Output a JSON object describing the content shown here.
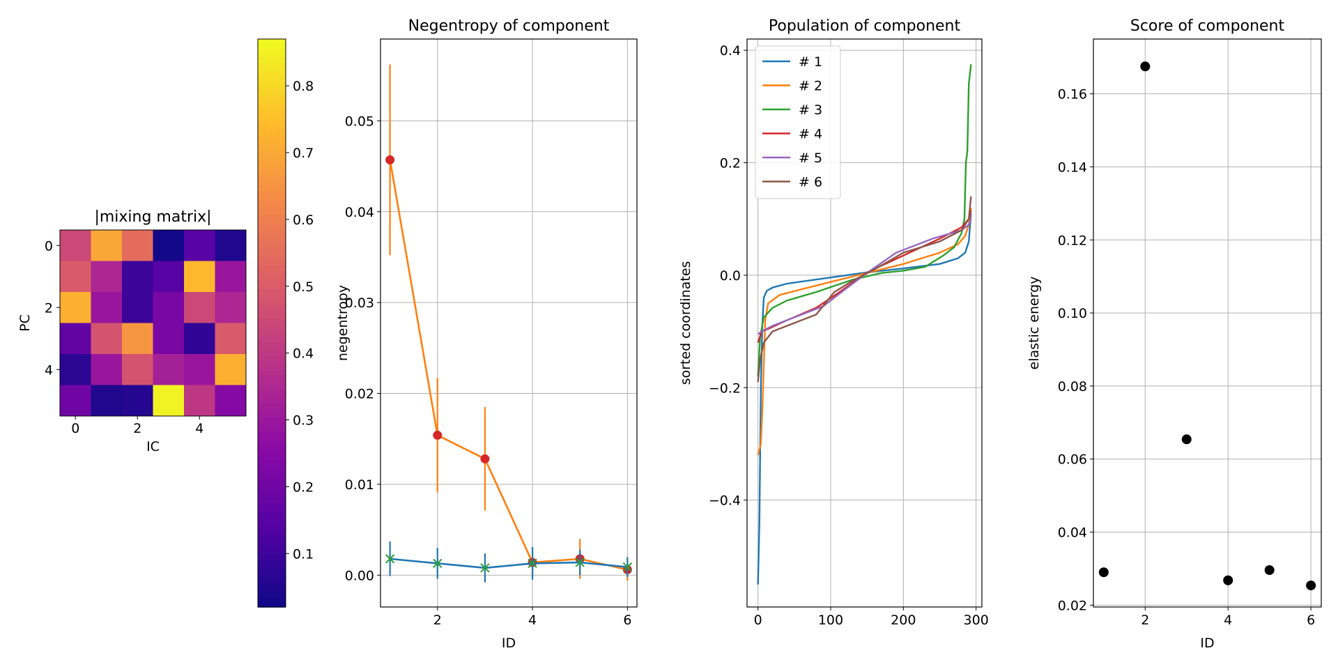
{
  "chart_data": [
    {
      "type": "heatmap",
      "title": "|mixing matrix|",
      "xlabel": "IC",
      "ylabel": "PC",
      "xticks": [
        "0",
        "2",
        "4"
      ],
      "yticks": [
        "0",
        "2",
        "4"
      ],
      "colormap": "plasma",
      "values": [
        [
          0.45,
          0.7,
          0.55,
          0.03,
          0.15,
          0.05
        ],
        [
          0.5,
          0.35,
          0.1,
          0.15,
          0.74,
          0.3
        ],
        [
          0.72,
          0.3,
          0.1,
          0.22,
          0.45,
          0.35
        ],
        [
          0.17,
          0.48,
          0.66,
          0.22,
          0.08,
          0.5
        ],
        [
          0.07,
          0.3,
          0.48,
          0.33,
          0.3,
          0.72
        ],
        [
          0.2,
          0.05,
          0.06,
          0.86,
          0.4,
          0.25
        ]
      ],
      "colorbar": {
        "vmin": 0.02,
        "vmax": 0.87,
        "ticks": [
          "0.1",
          "0.2",
          "0.3",
          "0.4",
          "0.5",
          "0.6",
          "0.7",
          "0.8"
        ]
      }
    },
    {
      "type": "line",
      "title": "Negentropy of component",
      "xlabel": "ID",
      "ylabel": "negentropy",
      "xlim": [
        0.8,
        6.2
      ],
      "ylim": [
        -0.0035,
        0.059
      ],
      "xticks": [
        "2",
        "4",
        "6"
      ],
      "yticks": [
        "0.00",
        "0.01",
        "0.02",
        "0.03",
        "0.04",
        "0.05"
      ],
      "grid": true,
      "x": [
        1,
        2,
        3,
        4,
        5,
        6
      ],
      "series": [
        {
          "values": [
            0.0457,
            0.0154,
            0.0128,
            0.0014,
            0.0018,
            0.0006
          ],
          "err": [
            0.0105,
            0.0063,
            0.0057,
            0.0015,
            0.0022,
            0.0012
          ],
          "color": "#ff7f0e",
          "marker_color": "#d62728",
          "marker": "circle"
        },
        {
          "values": [
            0.0018,
            0.0013,
            0.0008,
            0.0013,
            0.0014,
            0.0009
          ],
          "err": [
            0.0019,
            0.0017,
            0.0016,
            0.0018,
            0.0014,
            0.0011
          ],
          "color": "#1f77b4",
          "marker_color": "#2ca02c",
          "marker": "x"
        }
      ]
    },
    {
      "type": "line",
      "title": "Population of component",
      "xlabel": "",
      "ylabel": "sorted coordinates",
      "xlim": [
        -15,
        308
      ],
      "ylim": [
        -0.59,
        0.42
      ],
      "xticks": [
        "0",
        "100",
        "200",
        "300"
      ],
      "yticks": [
        "−0.4",
        "−0.2",
        "0.0",
        "0.2",
        "0.4"
      ],
      "grid": true,
      "legend": "top-left",
      "series": [
        {
          "name": "# 1",
          "color": "#1f77b4",
          "points": [
            [
              0,
              -0.55
            ],
            [
              2,
              -0.44
            ],
            [
              4,
              -0.2
            ],
            [
              6,
              -0.09
            ],
            [
              8,
              -0.04
            ],
            [
              12,
              -0.028
            ],
            [
              20,
              -0.022
            ],
            [
              40,
              -0.015
            ],
            [
              100,
              -0.004
            ],
            [
              150,
              0.005
            ],
            [
              200,
              0.012
            ],
            [
              250,
              0.02
            ],
            [
              275,
              0.03
            ],
            [
              285,
              0.04
            ],
            [
              290,
              0.06
            ],
            [
              293,
              0.11
            ]
          ]
        },
        {
          "name": "# 2",
          "color": "#ff7f0e",
          "points": [
            [
              0,
              -0.32
            ],
            [
              4,
              -0.3
            ],
            [
              6,
              -0.24
            ],
            [
              8,
              -0.16
            ],
            [
              10,
              -0.08
            ],
            [
              14,
              -0.05
            ],
            [
              30,
              -0.035
            ],
            [
              60,
              -0.025
            ],
            [
              100,
              -0.012
            ],
            [
              150,
              0.004
            ],
            [
              200,
              0.02
            ],
            [
              250,
              0.04
            ],
            [
              275,
              0.055
            ],
            [
              285,
              0.07
            ],
            [
              290,
              0.09
            ],
            [
              293,
              0.12
            ]
          ]
        },
        {
          "name": "# 3",
          "color": "#2ca02c",
          "points": [
            [
              0,
              -0.18
            ],
            [
              3,
              -0.11
            ],
            [
              8,
              -0.075
            ],
            [
              20,
              -0.058
            ],
            [
              40,
              -0.045
            ],
            [
              80,
              -0.03
            ],
            [
              130,
              -0.008
            ],
            [
              170,
              0.004
            ],
            [
              200,
              0.008
            ],
            [
              230,
              0.015
            ],
            [
              255,
              0.035
            ],
            [
              270,
              0.05
            ],
            [
              280,
              0.075
            ],
            [
              284,
              0.1
            ],
            [
              286,
              0.2
            ],
            [
              288,
              0.22
            ],
            [
              290,
              0.34
            ],
            [
              293,
              0.375
            ]
          ]
        },
        {
          "name": "# 4",
          "color": "#d62728",
          "points": [
            [
              0,
              -0.12
            ],
            [
              5,
              -0.1
            ],
            [
              15,
              -0.095
            ],
            [
              40,
              -0.08
            ],
            [
              80,
              -0.058
            ],
            [
              110,
              -0.032
            ],
            [
              150,
              0.005
            ],
            [
              200,
              0.035
            ],
            [
              250,
              0.065
            ],
            [
              280,
              0.085
            ],
            [
              290,
              0.1
            ],
            [
              293,
              0.115
            ]
          ]
        },
        {
          "name": "# 5",
          "color": "#9467bd",
          "points": [
            [
              0,
              -0.105
            ],
            [
              5,
              -0.1
            ],
            [
              20,
              -0.09
            ],
            [
              50,
              -0.075
            ],
            [
              90,
              -0.055
            ],
            [
              120,
              -0.025
            ],
            [
              150,
              0.004
            ],
            [
              190,
              0.04
            ],
            [
              240,
              0.065
            ],
            [
              280,
              0.08
            ],
            [
              290,
              0.09
            ],
            [
              293,
              0.1
            ]
          ]
        },
        {
          "name": "# 6",
          "color": "#8c564b",
          "points": [
            [
              0,
              -0.19
            ],
            [
              3,
              -0.15
            ],
            [
              8,
              -0.12
            ],
            [
              20,
              -0.1
            ],
            [
              50,
              -0.085
            ],
            [
              80,
              -0.07
            ],
            [
              105,
              -0.03
            ],
            [
              130,
              -0.01
            ],
            [
              160,
              0.01
            ],
            [
              200,
              0.04
            ],
            [
              250,
              0.06
            ],
            [
              280,
              0.08
            ],
            [
              290,
              0.1
            ],
            [
              293,
              0.14
            ]
          ]
        }
      ]
    },
    {
      "type": "scatter",
      "title": "Score of component",
      "xlabel": "ID",
      "ylabel": "elastic energy",
      "xlim": [
        0.75,
        6.25
      ],
      "ylim": [
        0.0195,
        0.175
      ],
      "xticks": [
        "2",
        "4",
        "6"
      ],
      "yticks": [
        "0.02",
        "0.04",
        "0.06",
        "0.08",
        "0.10",
        "0.12",
        "0.14",
        "0.16"
      ],
      "grid": true,
      "x": [
        1,
        2,
        3,
        4,
        5,
        6
      ],
      "values": [
        0.029,
        0.1675,
        0.0654,
        0.0268,
        0.0296,
        0.0254
      ],
      "color": "#000000"
    }
  ]
}
